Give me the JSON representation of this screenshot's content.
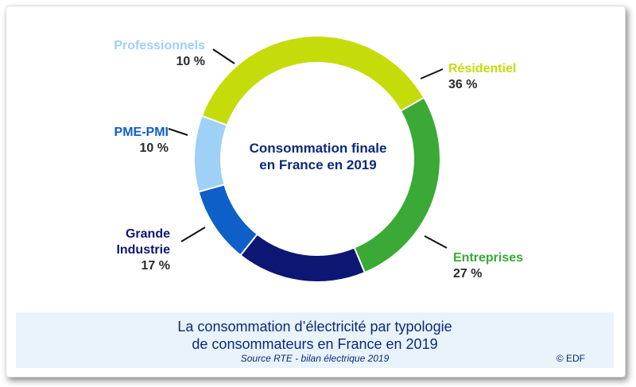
{
  "chart_data": {
    "type": "pie",
    "donut": true,
    "center_text": [
      "Consommation finale",
      "en France en 2019"
    ],
    "slices": [
      {
        "label": "Résidentiel",
        "percent_label": "36 %",
        "value": 36,
        "color": "#c5dc0b"
      },
      {
        "label": "Entreprises",
        "percent_label": "27 %",
        "value": 27,
        "color": "#3aa935"
      },
      {
        "label": "Grande Industrie",
        "label_lines": [
          "Grande",
          "Industrie"
        ],
        "percent_label": "17 %",
        "value": 17,
        "color": "#0d1673"
      },
      {
        "label": "PME-PMI",
        "percent_label": "10 %",
        "value": 10,
        "color": "#0f5fc8"
      },
      {
        "label": "Professionnels",
        "percent_label": "10 %",
        "value": 10,
        "color": "#9fd0f5"
      }
    ]
  },
  "footer": {
    "title_line1": "La consommation d’électricité par typologie",
    "title_line2": "de consommateurs en France en 2019",
    "source": "Source RTE - bilan électrique 2019",
    "copyright": "© EDF"
  },
  "colors": {
    "title": "#0b2a7a",
    "footer_bg": "#e8f3fb"
  }
}
